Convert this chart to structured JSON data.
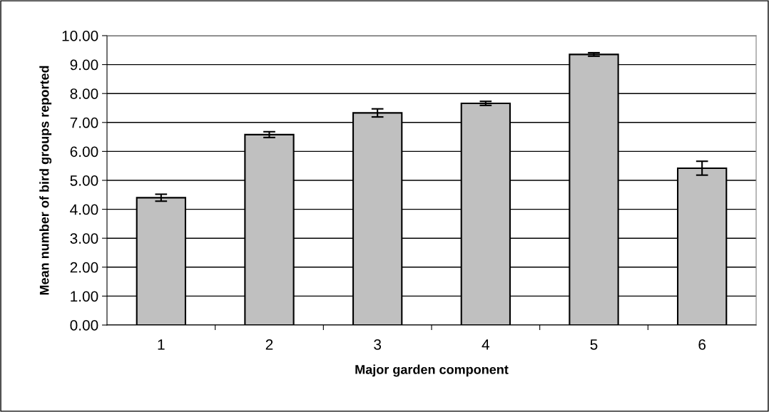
{
  "chart_data": {
    "type": "bar",
    "categories": [
      "1",
      "2",
      "3",
      "4",
      "5",
      "6"
    ],
    "values": [
      4.4,
      6.58,
      7.33,
      7.66,
      9.35,
      5.42
    ],
    "errors": [
      0.12,
      0.1,
      0.14,
      0.07,
      0.06,
      0.24
    ],
    "color": "#c0c0c0",
    "xlabel": "Major garden component",
    "ylabel": "Mean number of bird groups reported",
    "ylim": [
      0,
      10
    ],
    "yticks": [
      {
        "value": 0,
        "label": "0.00"
      },
      {
        "value": 1,
        "label": "1.00"
      },
      {
        "value": 2,
        "label": "2.00"
      },
      {
        "value": 3,
        "label": "3.00"
      },
      {
        "value": 4,
        "label": "4.00"
      },
      {
        "value": 5,
        "label": "5.00"
      },
      {
        "value": 6,
        "label": "6.00"
      },
      {
        "value": 7,
        "label": "7.00"
      },
      {
        "value": 8,
        "label": "8.00"
      },
      {
        "value": 9,
        "label": "9.00"
      },
      {
        "value": 10,
        "label": "10.00"
      }
    ],
    "grid": "y",
    "legend": false
  }
}
